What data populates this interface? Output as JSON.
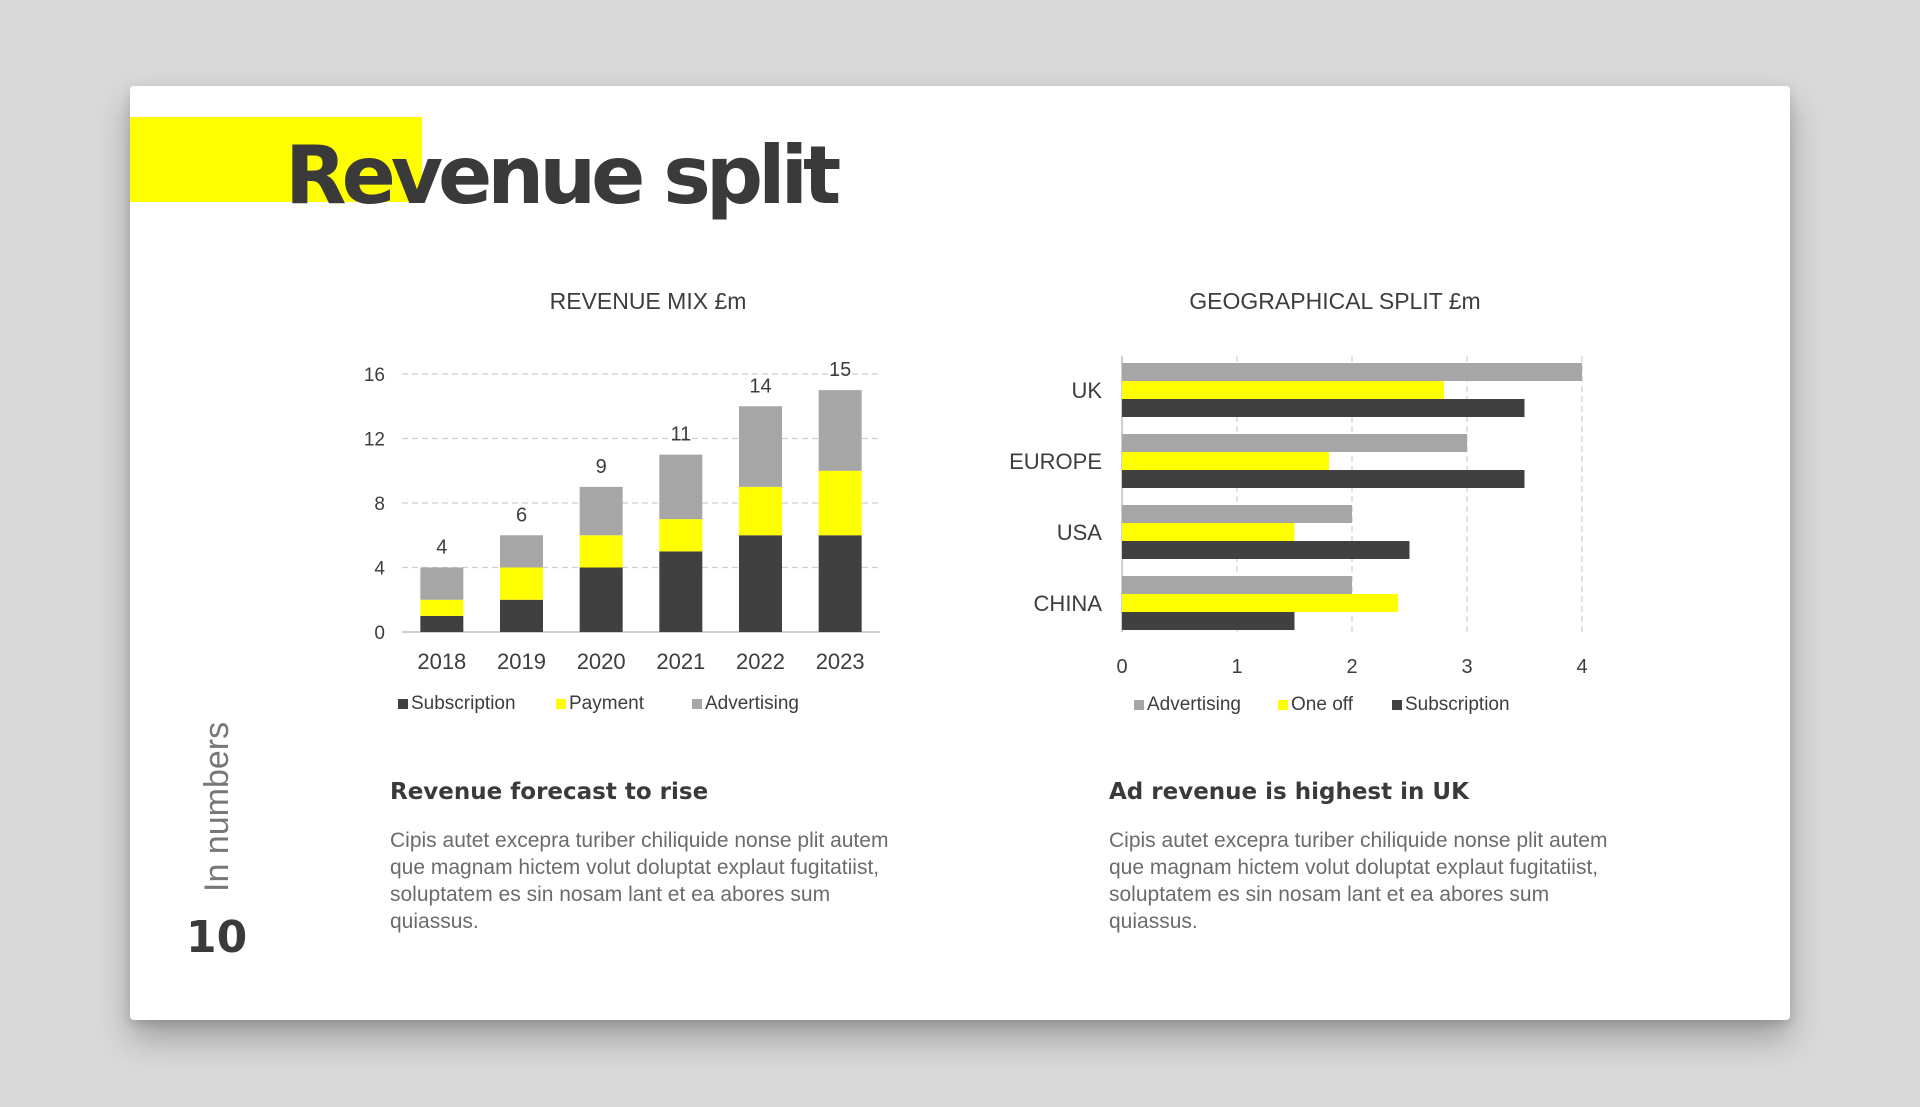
{
  "slide": {
    "title": "Revenue split",
    "side_label": "In numbers",
    "page_number": "10",
    "accent_color": "#ffff00"
  },
  "text_blocks": [
    {
      "heading": "Revenue forecast to rise",
      "body": "Cipis autet excepra turiber chiliquide nonse plit autem que magnam hictem volut doluptat explaut fugitatiist, soluptatem es sin nosam lant et ea abores sum quiassus."
    },
    {
      "heading": "Ad revenue is highest in UK",
      "body": "Cipis autet excepra turiber chiliquide nonse plit autem que magnam hictem volut doluptat explaut fugitatiist, soluptatem es sin nosam lant et ea abores sum quiassus."
    }
  ],
  "chart_data": [
    {
      "type": "bar",
      "stacked": true,
      "orientation": "vertical",
      "title": "REVENUE MIX £m",
      "categories": [
        "2018",
        "2019",
        "2020",
        "2021",
        "2022",
        "2023"
      ],
      "series": [
        {
          "name": "Subscription",
          "color": "#404040",
          "values": [
            1,
            2,
            4,
            5,
            6,
            6
          ]
        },
        {
          "name": "Payment",
          "color": "#ffff00",
          "values": [
            1,
            2,
            2,
            2,
            3,
            4
          ]
        },
        {
          "name": "Advertising",
          "color": "#a6a6a6",
          "values": [
            2,
            2,
            3,
            4,
            5,
            5
          ]
        }
      ],
      "totals": [
        "4",
        "6",
        "9",
        "11",
        "14",
        "15"
      ],
      "ylim": [
        0,
        16
      ],
      "yticks": [
        "0",
        "4",
        "8",
        "12",
        "16"
      ],
      "grid": true,
      "legend": "bottom"
    },
    {
      "type": "bar",
      "stacked": false,
      "orientation": "horizontal",
      "title": "GEOGRAPHICAL SPLIT £m",
      "categories": [
        "UK",
        "EUROPE",
        "USA",
        "CHINA"
      ],
      "series": [
        {
          "name": "Advertising",
          "color": "#a6a6a6",
          "values": [
            4,
            3,
            2,
            2
          ]
        },
        {
          "name": "One off",
          "color": "#ffff00",
          "values": [
            2.8,
            1.8,
            1.5,
            2.4
          ]
        },
        {
          "name": "Subscription",
          "color": "#404040",
          "values": [
            3.5,
            3.5,
            2.5,
            1.5
          ]
        }
      ],
      "xlim": [
        0,
        4
      ],
      "xticks": [
        "0",
        "1",
        "2",
        "3",
        "4"
      ],
      "grid": true,
      "legend": "bottom"
    }
  ]
}
